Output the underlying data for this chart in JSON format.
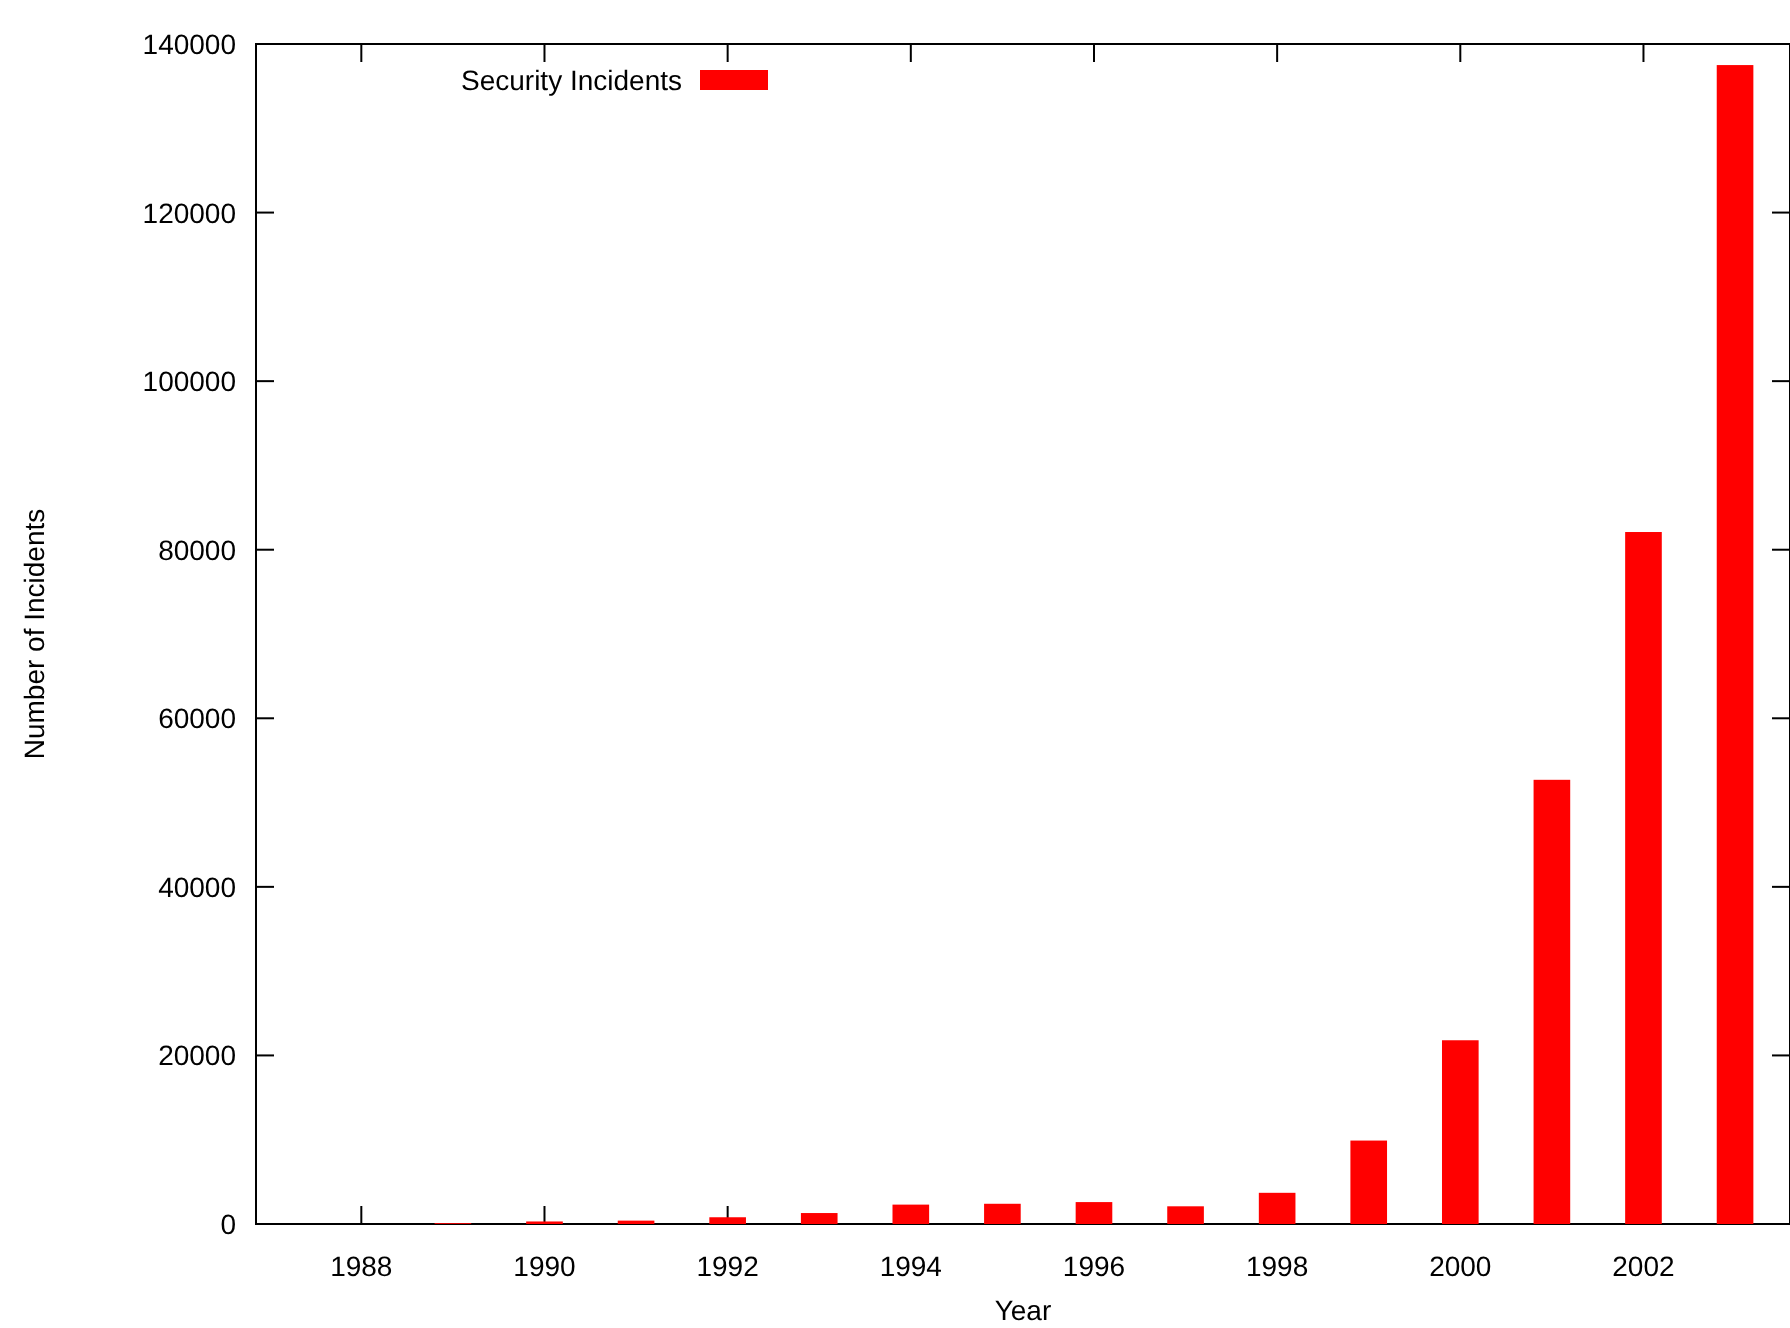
{
  "chart_data": {
    "type": "bar",
    "xlabel": "Year",
    "ylabel": "Number of Incidents",
    "x": [
      1988,
      1989,
      1990,
      1991,
      1992,
      1993,
      1994,
      1995,
      1996,
      1997,
      1998,
      1999,
      2000,
      2001,
      2002,
      2003
    ],
    "series": [
      {
        "name": "Security Incidents",
        "color": "#ff0000",
        "values": [
          0,
          100,
          300,
          400,
          800,
          1300,
          2300,
          2400,
          2600,
          2100,
          3700,
          9900,
          21800,
          52700,
          82100,
          137500
        ]
      }
    ],
    "xlim": [
      1986.85,
      2003.6
    ],
    "xticks": [
      1988,
      1990,
      1992,
      1994,
      1996,
      1998,
      2000,
      2002
    ],
    "ylim": [
      0,
      140000
    ],
    "yticks": [
      0,
      20000,
      40000,
      60000,
      80000,
      100000,
      120000,
      140000
    ],
    "grid": false,
    "legend": "top left"
  }
}
